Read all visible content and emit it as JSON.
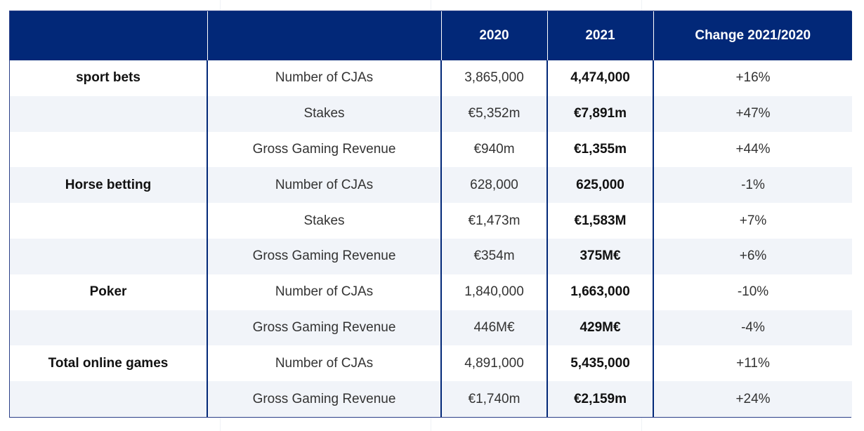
{
  "header": {
    "col_group": "",
    "col_metric": "",
    "col_2020": "2020",
    "col_2021": "2021",
    "col_change": "Change 2021/2020"
  },
  "rows": [
    {
      "group": "sport bets",
      "metric": "Number of CJAs",
      "v2020": "3,865,000",
      "v2021": "4,474,000",
      "change": "+16%"
    },
    {
      "group": "",
      "metric": "Stakes",
      "v2020": "€5,352m",
      "v2021": "€7,891m",
      "change": "+47%"
    },
    {
      "group": "",
      "metric": "Gross Gaming Revenue",
      "v2020": "€940m",
      "v2021": "€1,355m",
      "change": "+44%"
    },
    {
      "group": "Horse betting",
      "metric": "Number of CJAs",
      "v2020": "628,000",
      "v2021": "625,000",
      "change": "-1%"
    },
    {
      "group": "",
      "metric": "Stakes",
      "v2020": "€1,473m",
      "v2021": "€1,583M",
      "change": "+7%"
    },
    {
      "group": "",
      "metric": "Gross Gaming Revenue",
      "v2020": "€354m",
      "v2021": "375M€",
      "change": "+6%"
    },
    {
      "group": "Poker",
      "metric": "Number of CJAs",
      "v2020": "1,840,000",
      "v2021": "1,663,000",
      "change": "-10%"
    },
    {
      "group": "",
      "metric": "Gross Gaming Revenue",
      "v2020": "446M€",
      "v2021": "429M€",
      "change": "-4%"
    },
    {
      "group": "Total online games",
      "metric": "Number of CJAs",
      "v2020": "4,891,000",
      "v2021": "5,435,000",
      "change": "+11%"
    },
    {
      "group": "",
      "metric": "Gross Gaming Revenue",
      "v2020": "€1,740m",
      "v2021": "€2,159m",
      "change": "+24%"
    }
  ],
  "colors": {
    "header_bg": "#022878",
    "stripe_bg": "#f1f4f9",
    "border": "#022878"
  }
}
